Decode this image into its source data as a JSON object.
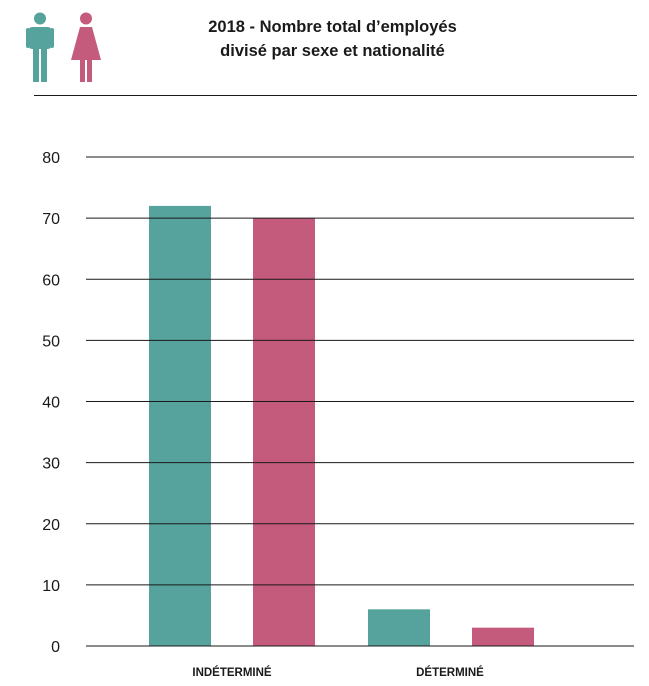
{
  "header": {
    "title_line1": "2018 - Nombre total d’employés",
    "title_line2": "divisé par sexe et nationalité",
    "icons": [
      "male-icon",
      "female-icon"
    ]
  },
  "colors": {
    "male": "#55a39c",
    "female": "#c45a7c",
    "text": "#1a1a1a",
    "grid": "#1a1a1a"
  },
  "chart_data": {
    "type": "bar",
    "categories": [
      "INDÉTERMINÉ",
      "DÉTERMINÉ"
    ],
    "series": [
      {
        "values": [
          72,
          6
        ],
        "color": "#55a39c"
      },
      {
        "values": [
          70,
          3
        ],
        "color": "#c45a7c"
      }
    ],
    "yticks": [
      0,
      10,
      20,
      30,
      40,
      50,
      60,
      70,
      80
    ],
    "ylim": [
      0,
      80
    ],
    "grid": true,
    "legend": "none"
  }
}
